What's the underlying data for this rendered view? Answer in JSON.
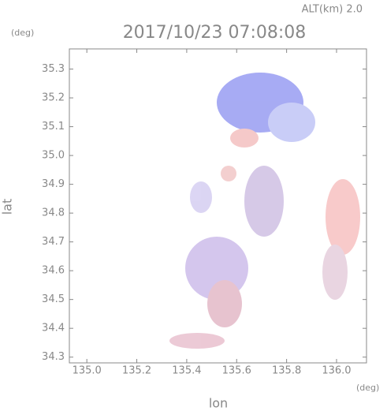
{
  "chart_data": {
    "type": "map",
    "annotation": "ALT(km) 2.0",
    "title": "2017/10/23 07:08:08",
    "y_unit": "(deg)",
    "x_unit": "(deg)",
    "x_label": "lon",
    "y_label": "lat",
    "xlim": [
      134.93,
      136.12
    ],
    "ylim": [
      34.28,
      35.37
    ],
    "xticks": [
      {
        "value": 135.0,
        "label": "135.0"
      },
      135.2,
      135.4,
      135.6,
      135.8,
      {
        "value": 136.0,
        "label": "136.0"
      }
    ],
    "yticks": [
      {
        "value": 34.3,
        "label": "34.3"
      },
      {
        "value": 34.4,
        "label": "34.4"
      },
      {
        "value": 34.5,
        "label": "34.5"
      },
      {
        "value": 34.6,
        "label": "34.6"
      },
      {
        "value": 34.7,
        "label": "34.7"
      },
      {
        "value": 34.8,
        "label": "34.8"
      },
      {
        "value": 34.9,
        "label": "34.9"
      },
      {
        "value": 35.0,
        "label": "35.0"
      },
      {
        "value": 35.1,
        "label": "35.1"
      },
      {
        "value": 35.2,
        "label": "35.2"
      },
      {
        "value": 35.3,
        "label": "35.3"
      }
    ]
  }
}
